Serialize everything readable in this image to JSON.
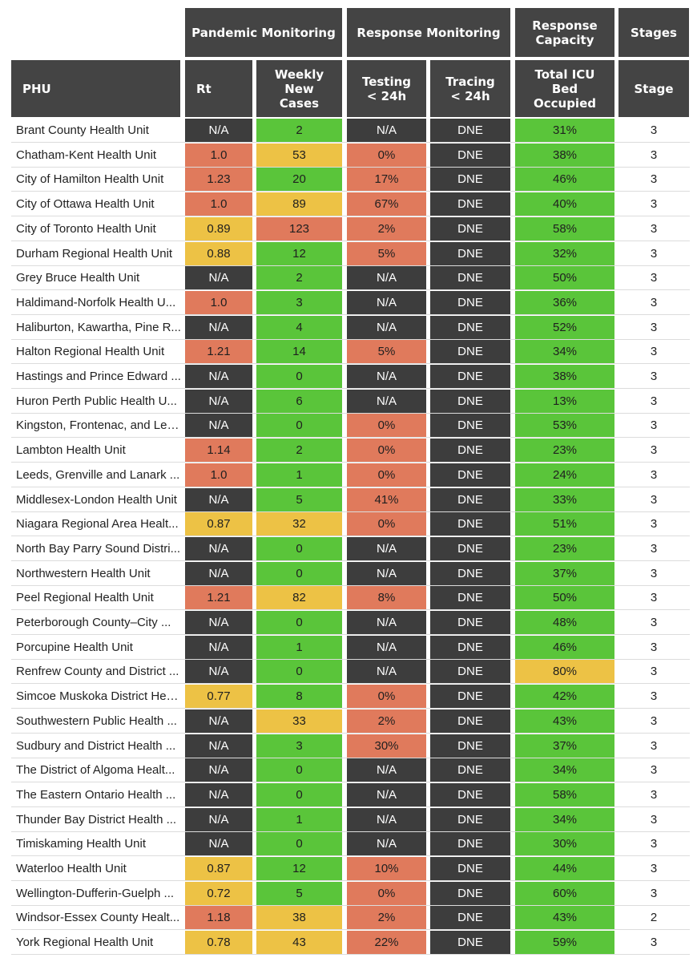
{
  "header_groups": {
    "pandemic": "Pandemic Monitoring",
    "response": "Response Monitoring",
    "capacity": [
      "Response",
      "Capacity"
    ],
    "stages": "Stages"
  },
  "header_columns": {
    "phu": "PHU",
    "rt": "Rt",
    "weekly": [
      "Weekly",
      "New",
      "Cases"
    ],
    "testing": [
      "Testing",
      "< 24h"
    ],
    "tracing": [
      "Tracing",
      "< 24h"
    ],
    "icu": [
      "Total ICU",
      "Bed",
      "Occupied"
    ],
    "stage": "Stage"
  },
  "colors": {
    "dark": "#3d3d3d",
    "green": "#5ac53a",
    "red": "#e07a5c",
    "yellow": "#edc245",
    "header": "#444444"
  },
  "rows": [
    {
      "name": "Brant County Health Unit",
      "rt": "N/A",
      "rt_c": "dark",
      "wk": "2",
      "wk_c": "green",
      "test": "N/A",
      "test_c": "dark",
      "trace": "DNE",
      "trace_c": "dark",
      "icu": "31%",
      "icu_c": "green",
      "stage": "3"
    },
    {
      "name": "Chatham-Kent Health Unit",
      "rt": "1.0",
      "rt_c": "red",
      "wk": "53",
      "wk_c": "yellow",
      "test": "0%",
      "test_c": "red",
      "trace": "DNE",
      "trace_c": "dark",
      "icu": "38%",
      "icu_c": "green",
      "stage": "3"
    },
    {
      "name": "City of Hamilton Health Unit",
      "rt": "1.23",
      "rt_c": "red",
      "wk": "20",
      "wk_c": "green",
      "test": "17%",
      "test_c": "red",
      "trace": "DNE",
      "trace_c": "dark",
      "icu": "46%",
      "icu_c": "green",
      "stage": "3"
    },
    {
      "name": "City of Ottawa Health Unit",
      "rt": "1.0",
      "rt_c": "red",
      "wk": "89",
      "wk_c": "yellow",
      "test": "67%",
      "test_c": "red",
      "trace": "DNE",
      "trace_c": "dark",
      "icu": "40%",
      "icu_c": "green",
      "stage": "3"
    },
    {
      "name": "City of Toronto Health Unit",
      "rt": "0.89",
      "rt_c": "yellow",
      "wk": "123",
      "wk_c": "red",
      "test": "2%",
      "test_c": "red",
      "trace": "DNE",
      "trace_c": "dark",
      "icu": "58%",
      "icu_c": "green",
      "stage": "3"
    },
    {
      "name": "Durham Regional Health Unit",
      "rt": "0.88",
      "rt_c": "yellow",
      "wk": "12",
      "wk_c": "green",
      "test": "5%",
      "test_c": "red",
      "trace": "DNE",
      "trace_c": "dark",
      "icu": "32%",
      "icu_c": "green",
      "stage": "3"
    },
    {
      "name": "Grey Bruce Health Unit",
      "rt": "N/A",
      "rt_c": "dark",
      "wk": "2",
      "wk_c": "green",
      "test": "N/A",
      "test_c": "dark",
      "trace": "DNE",
      "trace_c": "dark",
      "icu": "50%",
      "icu_c": "green",
      "stage": "3"
    },
    {
      "name": "Haldimand-Norfolk Health U...",
      "rt": "1.0",
      "rt_c": "red",
      "wk": "3",
      "wk_c": "green",
      "test": "N/A",
      "test_c": "dark",
      "trace": "DNE",
      "trace_c": "dark",
      "icu": "36%",
      "icu_c": "green",
      "stage": "3"
    },
    {
      "name": "Haliburton, Kawartha, Pine R...",
      "rt": "N/A",
      "rt_c": "dark",
      "wk": "4",
      "wk_c": "green",
      "test": "N/A",
      "test_c": "dark",
      "trace": "DNE",
      "trace_c": "dark",
      "icu": "52%",
      "icu_c": "green",
      "stage": "3"
    },
    {
      "name": "Halton Regional Health Unit",
      "rt": "1.21",
      "rt_c": "red",
      "wk": "14",
      "wk_c": "green",
      "test": "5%",
      "test_c": "red",
      "trace": "DNE",
      "trace_c": "dark",
      "icu": "34%",
      "icu_c": "green",
      "stage": "3"
    },
    {
      "name": "Hastings and Prince Edward ...",
      "rt": "N/A",
      "rt_c": "dark",
      "wk": "0",
      "wk_c": "green",
      "test": "N/A",
      "test_c": "dark",
      "trace": "DNE",
      "trace_c": "dark",
      "icu": "38%",
      "icu_c": "green",
      "stage": "3"
    },
    {
      "name": "Huron Perth Public Health U...",
      "rt": "N/A",
      "rt_c": "dark",
      "wk": "6",
      "wk_c": "green",
      "test": "N/A",
      "test_c": "dark",
      "trace": "DNE",
      "trace_c": "dark",
      "icu": "13%",
      "icu_c": "green",
      "stage": "3"
    },
    {
      "name": "Kingston, Frontenac, and Len...",
      "rt": "N/A",
      "rt_c": "dark",
      "wk": "0",
      "wk_c": "green",
      "test": "0%",
      "test_c": "red",
      "trace": "DNE",
      "trace_c": "dark",
      "icu": "53%",
      "icu_c": "green",
      "stage": "3"
    },
    {
      "name": "Lambton Health Unit",
      "rt": "1.14",
      "rt_c": "red",
      "wk": "2",
      "wk_c": "green",
      "test": "0%",
      "test_c": "red",
      "trace": "DNE",
      "trace_c": "dark",
      "icu": "23%",
      "icu_c": "green",
      "stage": "3"
    },
    {
      "name": "Leeds, Grenville and Lanark ...",
      "rt": "1.0",
      "rt_c": "red",
      "wk": "1",
      "wk_c": "green",
      "test": "0%",
      "test_c": "red",
      "trace": "DNE",
      "trace_c": "dark",
      "icu": "24%",
      "icu_c": "green",
      "stage": "3"
    },
    {
      "name": "Middlesex-London Health Unit",
      "rt": "N/A",
      "rt_c": "dark",
      "wk": "5",
      "wk_c": "green",
      "test": "41%",
      "test_c": "red",
      "trace": "DNE",
      "trace_c": "dark",
      "icu": "33%",
      "icu_c": "green",
      "stage": "3"
    },
    {
      "name": "Niagara Regional Area Healt...",
      "rt": "0.87",
      "rt_c": "yellow",
      "wk": "32",
      "wk_c": "yellow",
      "test": "0%",
      "test_c": "red",
      "trace": "DNE",
      "trace_c": "dark",
      "icu": "51%",
      "icu_c": "green",
      "stage": "3"
    },
    {
      "name": "North Bay Parry Sound Distri...",
      "rt": "N/A",
      "rt_c": "dark",
      "wk": "0",
      "wk_c": "green",
      "test": "N/A",
      "test_c": "dark",
      "trace": "DNE",
      "trace_c": "dark",
      "icu": "23%",
      "icu_c": "green",
      "stage": "3"
    },
    {
      "name": "Northwestern Health Unit",
      "rt": "N/A",
      "rt_c": "dark",
      "wk": "0",
      "wk_c": "green",
      "test": "N/A",
      "test_c": "dark",
      "trace": "DNE",
      "trace_c": "dark",
      "icu": "37%",
      "icu_c": "green",
      "stage": "3"
    },
    {
      "name": "Peel Regional Health Unit",
      "rt": "1.21",
      "rt_c": "red",
      "wk": "82",
      "wk_c": "yellow",
      "test": "8%",
      "test_c": "red",
      "trace": "DNE",
      "trace_c": "dark",
      "icu": "50%",
      "icu_c": "green",
      "stage": "3"
    },
    {
      "name": "Peterborough County–City ...",
      "rt": "N/A",
      "rt_c": "dark",
      "wk": "0",
      "wk_c": "green",
      "test": "N/A",
      "test_c": "dark",
      "trace": "DNE",
      "trace_c": "dark",
      "icu": "48%",
      "icu_c": "green",
      "stage": "3"
    },
    {
      "name": "Porcupine Health Unit",
      "rt": "N/A",
      "rt_c": "dark",
      "wk": "1",
      "wk_c": "green",
      "test": "N/A",
      "test_c": "dark",
      "trace": "DNE",
      "trace_c": "dark",
      "icu": "46%",
      "icu_c": "green",
      "stage": "3"
    },
    {
      "name": "Renfrew County and District ...",
      "rt": "N/A",
      "rt_c": "dark",
      "wk": "0",
      "wk_c": "green",
      "test": "N/A",
      "test_c": "dark",
      "trace": "DNE",
      "trace_c": "dark",
      "icu": "80%",
      "icu_c": "yellow",
      "stage": "3"
    },
    {
      "name": "Simcoe Muskoka District Hea...",
      "rt": "0.77",
      "rt_c": "yellow",
      "wk": "8",
      "wk_c": "green",
      "test": "0%",
      "test_c": "red",
      "trace": "DNE",
      "trace_c": "dark",
      "icu": "42%",
      "icu_c": "green",
      "stage": "3"
    },
    {
      "name": "Southwestern Public Health ...",
      "rt": "N/A",
      "rt_c": "dark",
      "wk": "33",
      "wk_c": "yellow",
      "test": "2%",
      "test_c": "red",
      "trace": "DNE",
      "trace_c": "dark",
      "icu": "43%",
      "icu_c": "green",
      "stage": "3"
    },
    {
      "name": "Sudbury and District Health ...",
      "rt": "N/A",
      "rt_c": "dark",
      "wk": "3",
      "wk_c": "green",
      "test": "30%",
      "test_c": "red",
      "trace": "DNE",
      "trace_c": "dark",
      "icu": "37%",
      "icu_c": "green",
      "stage": "3"
    },
    {
      "name": "The District of Algoma Healt...",
      "rt": "N/A",
      "rt_c": "dark",
      "wk": "0",
      "wk_c": "green",
      "test": "N/A",
      "test_c": "dark",
      "trace": "DNE",
      "trace_c": "dark",
      "icu": "34%",
      "icu_c": "green",
      "stage": "3"
    },
    {
      "name": "The Eastern Ontario Health ...",
      "rt": "N/A",
      "rt_c": "dark",
      "wk": "0",
      "wk_c": "green",
      "test": "N/A",
      "test_c": "dark",
      "trace": "DNE",
      "trace_c": "dark",
      "icu": "58%",
      "icu_c": "green",
      "stage": "3"
    },
    {
      "name": "Thunder Bay District Health ...",
      "rt": "N/A",
      "rt_c": "dark",
      "wk": "1",
      "wk_c": "green",
      "test": "N/A",
      "test_c": "dark",
      "trace": "DNE",
      "trace_c": "dark",
      "icu": "34%",
      "icu_c": "green",
      "stage": "3"
    },
    {
      "name": "Timiskaming Health Unit",
      "rt": "N/A",
      "rt_c": "dark",
      "wk": "0",
      "wk_c": "green",
      "test": "N/A",
      "test_c": "dark",
      "trace": "DNE",
      "trace_c": "dark",
      "icu": "30%",
      "icu_c": "green",
      "stage": "3"
    },
    {
      "name": "Waterloo Health Unit",
      "rt": "0.87",
      "rt_c": "yellow",
      "wk": "12",
      "wk_c": "green",
      "test": "10%",
      "test_c": "red",
      "trace": "DNE",
      "trace_c": "dark",
      "icu": "44%",
      "icu_c": "green",
      "stage": "3"
    },
    {
      "name": "Wellington-Dufferin-Guelph ...",
      "rt": "0.72",
      "rt_c": "yellow",
      "wk": "5",
      "wk_c": "green",
      "test": "0%",
      "test_c": "red",
      "trace": "DNE",
      "trace_c": "dark",
      "icu": "60%",
      "icu_c": "green",
      "stage": "3"
    },
    {
      "name": "Windsor-Essex County Healt...",
      "rt": "1.18",
      "rt_c": "red",
      "wk": "38",
      "wk_c": "yellow",
      "test": "2%",
      "test_c": "red",
      "trace": "DNE",
      "trace_c": "dark",
      "icu": "43%",
      "icu_c": "green",
      "stage": "2"
    },
    {
      "name": "York Regional Health Unit",
      "rt": "0.78",
      "rt_c": "yellow",
      "wk": "43",
      "wk_c": "yellow",
      "test": "22%",
      "test_c": "red",
      "trace": "DNE",
      "trace_c": "dark",
      "icu": "59%",
      "icu_c": "green",
      "stage": "3"
    }
  ]
}
